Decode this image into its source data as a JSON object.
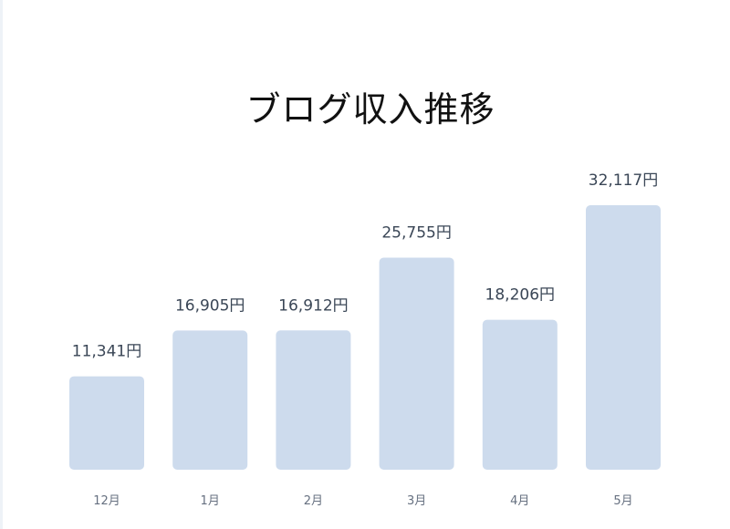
{
  "chart_data": {
    "type": "bar",
    "title": "ブログ収入推移",
    "categories": [
      "12月",
      "1月",
      "2月",
      "3月",
      "4月",
      "5月"
    ],
    "values": [
      11341,
      16905,
      16912,
      25755,
      18206,
      32117
    ],
    "value_labels": [
      "11,341円",
      "16,905円",
      "16,912円",
      "25,755円",
      "18,206円",
      "32,117円"
    ],
    "xlabel": "",
    "ylabel": "",
    "ylim": [
      0,
      32117
    ],
    "grid": false,
    "legend": "none",
    "bar_color": "#cddbed"
  }
}
